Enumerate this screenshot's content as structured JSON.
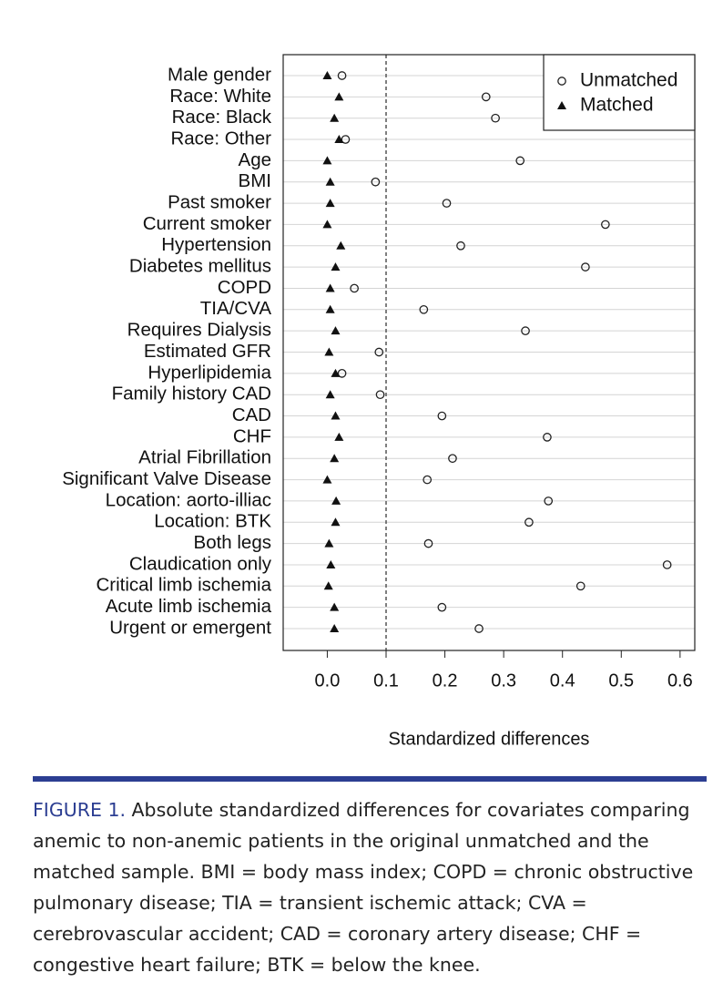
{
  "chart_data": {
    "type": "dotplot",
    "x_label": "Standardized differences",
    "categories": [
      "Male gender",
      "Race: White",
      "Race: Black",
      "Race: Other",
      "Age",
      "BMI",
      "Past smoker",
      "Current smoker",
      "Hypertension",
      "Diabetes mellitus",
      "COPD",
      "TIA/CVA",
      "Requires Dialysis",
      "Estimated GFR",
      "Hyperlipidemia",
      "Family history CAD",
      "CAD",
      "CHF",
      "Atrial Fibrillation",
      "Significant Valve Disease",
      "Location: aorto-illiac",
      "Location: BTK",
      "Both legs",
      "Claudication only",
      "Critical limb ischemia",
      "Acute limb ischemia",
      "Urgent or emergent"
    ],
    "series": [
      {
        "name": "Unmatched",
        "color": "#222222",
        "marker": "circle",
        "values": [
          0.025,
          0.27,
          0.286,
          0.031,
          0.328,
          0.082,
          0.203,
          0.473,
          0.227,
          0.439,
          0.046,
          0.164,
          0.337,
          0.088,
          0.025,
          0.09,
          0.195,
          0.374,
          0.213,
          0.17,
          0.376,
          0.343,
          0.172,
          0.578,
          0.431,
          0.195,
          0.258
        ]
      },
      {
        "name": "Matched",
        "color": "#111111",
        "marker": "triangle",
        "values": [
          0.0,
          0.02,
          0.012,
          0.02,
          0.0,
          0.005,
          0.005,
          0.0,
          0.023,
          0.014,
          0.005,
          0.005,
          0.014,
          0.003,
          0.014,
          0.005,
          0.014,
          0.02,
          0.012,
          0.0,
          0.015,
          0.014,
          0.003,
          0.006,
          0.002,
          0.012,
          0.012
        ]
      }
    ],
    "xlim": [
      -0.075,
      0.625
    ],
    "xticks": [
      {
        "value": 0,
        "label": "0.0"
      },
      0.1,
      0.2,
      0.3,
      0.4,
      0.5,
      0.6
    ],
    "reference_line": 0.1,
    "grid": true,
    "legend": "top-right"
  },
  "caption": {
    "label": "FIGURE 1.",
    "text": "Absolute standardized differences for covariates comparing anemic to non-anemic patients in the original unmatched and the matched sample. BMI = body mass index; COPD = chronic obstructive pulmonary disease; TIA = transient ischemic attack; CVA = cerebrovascular accident; CAD = coronary artery disease; CHF = congestive heart failure; BTK = below the knee."
  }
}
